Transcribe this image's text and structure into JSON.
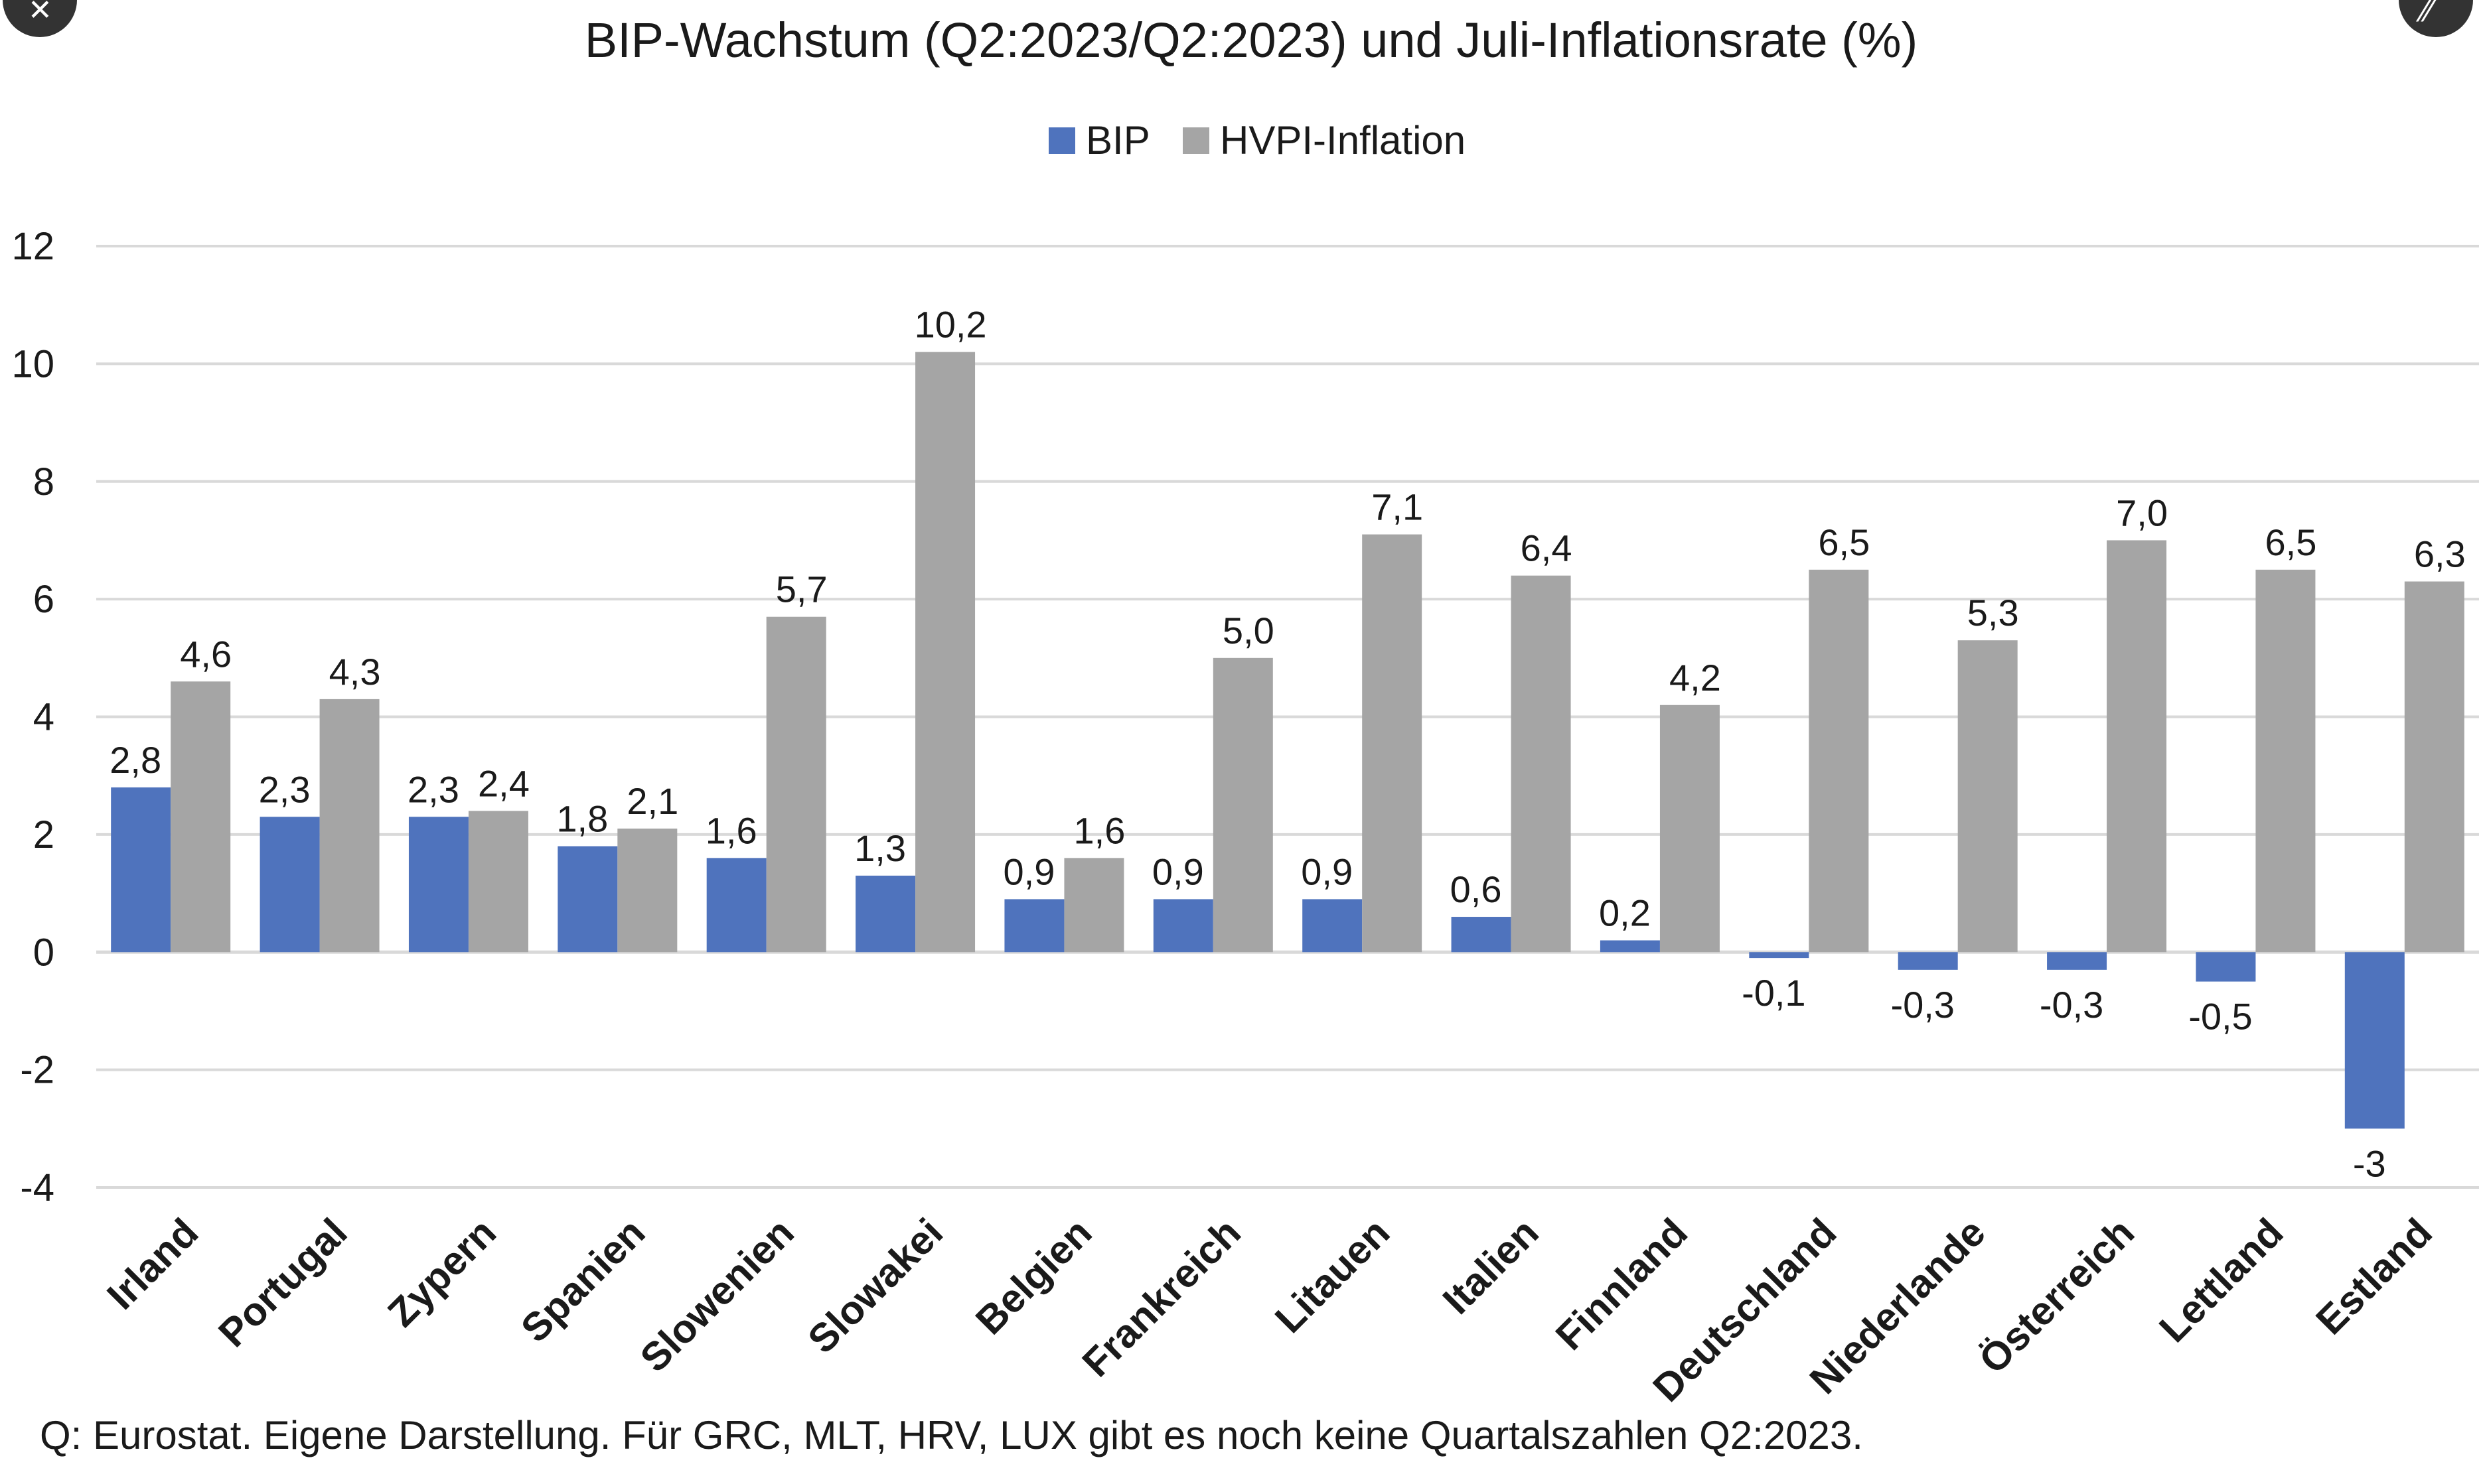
{
  "chart_data": {
    "type": "bar",
    "title": "BIP-Wachstum (Q2:2023/Q2:2023) und Juli-Inflationsrate (%)",
    "categories": [
      "Irland",
      "Portugal",
      "Zypern",
      "Spanien",
      "Slowenien",
      "Slowakei",
      "Belgien",
      "Frankreich",
      "Litauen",
      "Italien",
      "Finnland",
      "Deutschland",
      "Niederlande",
      "Österreich",
      "Lettland",
      "Estland"
    ],
    "series": [
      {
        "name": "BIP",
        "color": "#4f73bd",
        "values": [
          2.8,
          2.3,
          2.3,
          1.8,
          1.6,
          1.3,
          0.9,
          0.9,
          0.9,
          0.6,
          0.2,
          -0.1,
          -0.3,
          -0.3,
          -0.5,
          -3
        ],
        "labels": [
          "2,8",
          "2,3",
          "2,3",
          "1,8",
          "1,6",
          "1,3",
          "0,9",
          "0,9",
          "0,9",
          "0,6",
          "0,2",
          "-0,1",
          "-0,3",
          "-0,3",
          "-0,5",
          "-3"
        ]
      },
      {
        "name": "HVPI-Inflation",
        "color": "#a5a5a5",
        "values": [
          4.6,
          4.3,
          2.4,
          2.1,
          5.7,
          10.2,
          1.6,
          5.0,
          7.1,
          6.4,
          4.2,
          6.5,
          5.3,
          7.0,
          6.5,
          6.3
        ],
        "labels": [
          "4,6",
          "4,3",
          "2,4",
          "2,1",
          "5,7",
          "10,2",
          "1,6",
          "5,0",
          "7,1",
          "6,4",
          "4,2",
          "6,5",
          "5,3",
          "7,0",
          "6,5",
          "6,3"
        ]
      }
    ],
    "ylim": [
      -4,
      12
    ],
    "yticks": [
      -4,
      -2,
      0,
      2,
      4,
      6,
      8,
      10,
      12
    ],
    "ytick_labels": [
      "-4",
      "-2",
      "0",
      "2",
      "4",
      "6",
      "8",
      "10",
      "12"
    ],
    "grid": true,
    "legend_position": "top-center",
    "xlabel": "",
    "ylabel": "",
    "source_note": "Q: Eurostat. Eigene Darstellung. Für GRC, MLT, HRV, LUX gibt es noch keine Quartalszahlen Q2:2023."
  },
  "ui": {
    "close_icon": "close-icon",
    "expand_icon": "expand-icon",
    "close_glyph": "✕",
    "expand_glyph": "⁄⁄"
  }
}
